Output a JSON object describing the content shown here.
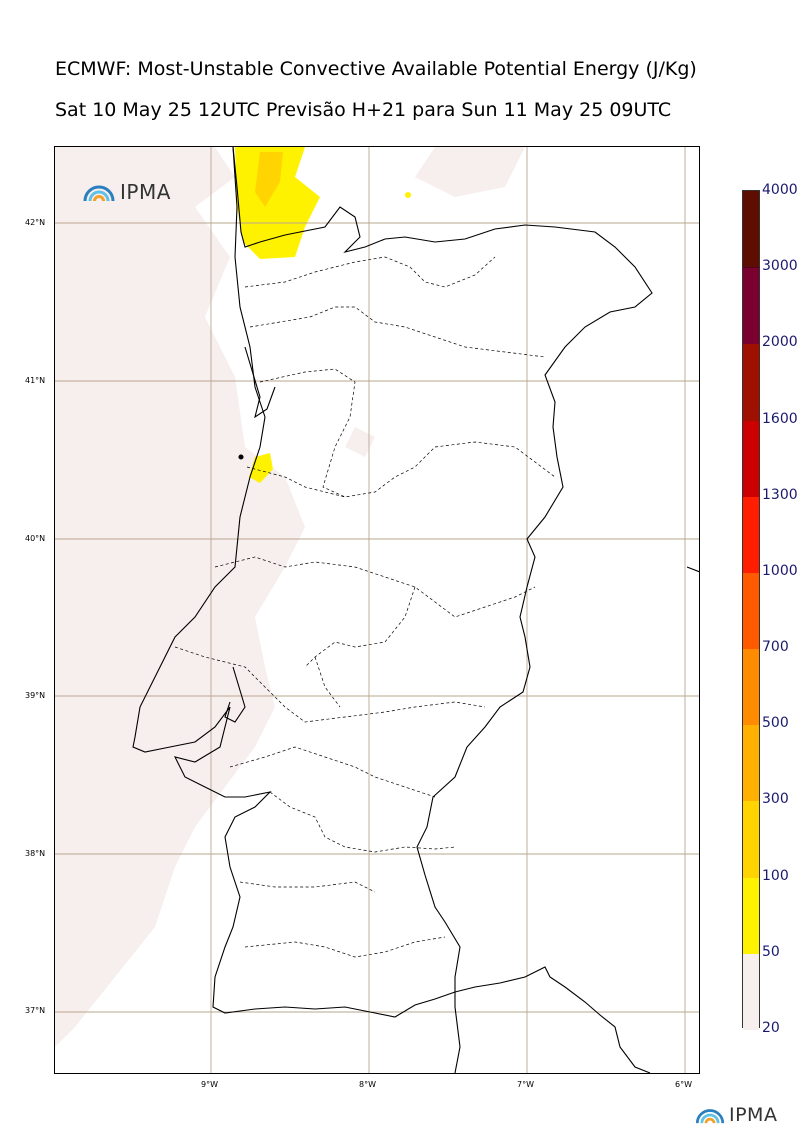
{
  "title": {
    "line1": "ECMWF: Most-Unstable Convective Available Potential Energy (J/Kg)",
    "line2": "Sat 10 May 25 12UTC Previsão H+21 para Sun 11 May 25 09UTC"
  },
  "logo": {
    "text": "IPMA"
  },
  "map": {
    "lat_ticks": [
      "42°N",
      "41°N",
      "40°N",
      "39°N",
      "38°N",
      "37°N"
    ],
    "lon_ticks": [
      "9°W",
      "8°W",
      "7°W",
      "6°W"
    ],
    "grid_color": "#b8a78f",
    "coast_color": "#000000"
  },
  "colorbar": {
    "levels": [
      "20",
      "50",
      "100",
      "300",
      "500",
      "700",
      "1000",
      "1300",
      "1600",
      "2000",
      "3000",
      "4000"
    ],
    "colors": [
      "#f7eeee",
      "#fff200",
      "#ffd400",
      "#ffb000",
      "#ff8c00",
      "#ff5a00",
      "#ff1e00",
      "#cc0000",
      "#a01000",
      "#7a0030",
      "#5e0e00"
    ]
  }
}
